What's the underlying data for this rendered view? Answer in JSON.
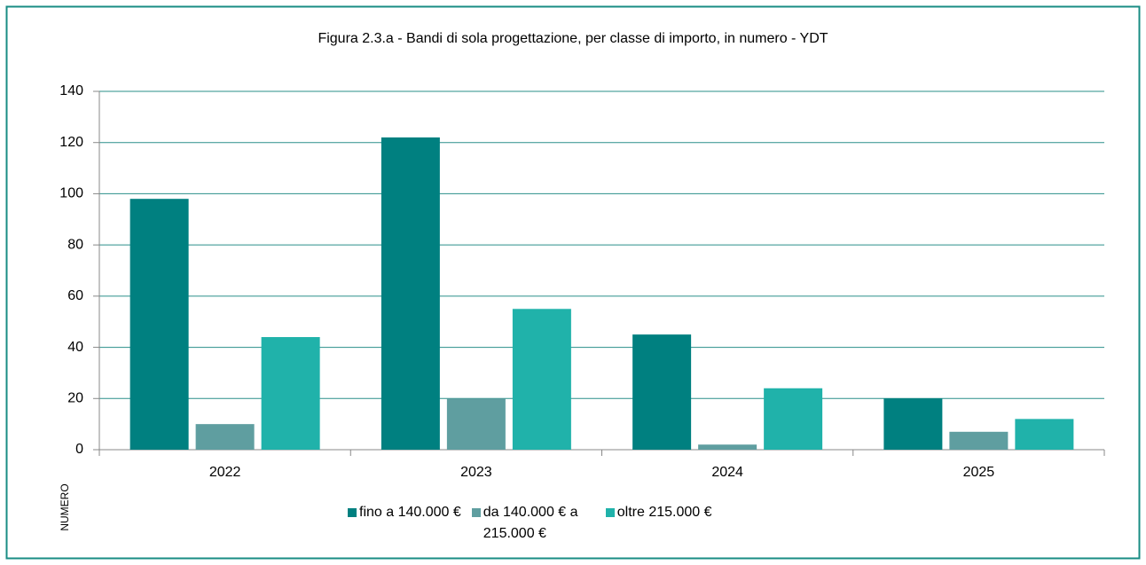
{
  "chart_data": {
    "type": "bar",
    "title": "Figura 2.3.a - Bandi di sola progettazione, per classe di importo, in numero - YDT",
    "y_label": "NUMERO",
    "categories": [
      "2022",
      "2023",
      "2024",
      "2025"
    ],
    "series": [
      {
        "name": "fino a 140.000 €",
        "color": "#008080",
        "values": [
          98,
          122,
          45,
          20
        ]
      },
      {
        "name": "da 140.000 € a 215.000 €",
        "color": "#5f9ea0",
        "values": [
          10,
          20,
          2,
          7
        ]
      },
      {
        "name": "oltre 215.000 €",
        "color": "#20b2aa",
        "values": [
          44,
          55,
          24,
          12
        ]
      }
    ],
    "ylim": [
      0,
      140
    ],
    "yticks": [
      0,
      20,
      40,
      60,
      80,
      100,
      120,
      140
    ],
    "grid": true,
    "legend": "bottom"
  }
}
